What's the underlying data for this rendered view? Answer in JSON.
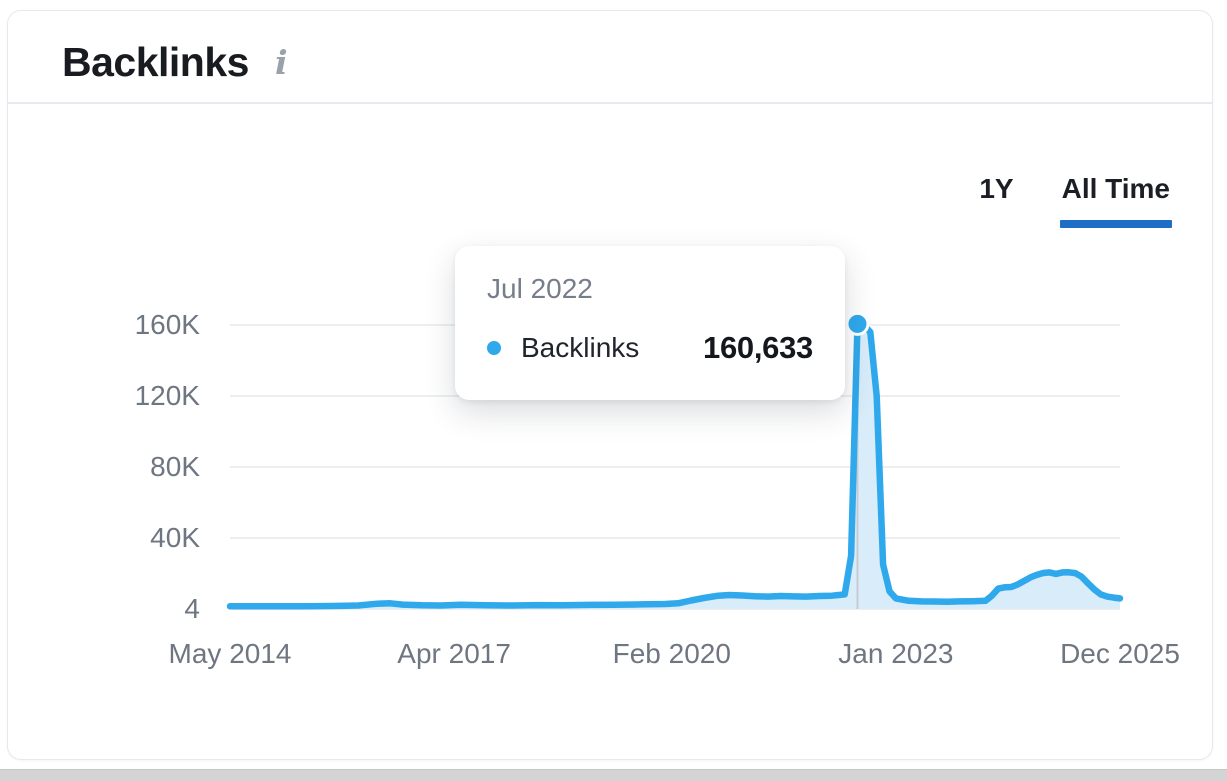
{
  "header": {
    "title": "Backlinks",
    "info_icon_glyph": "i"
  },
  "range_selector": {
    "options": [
      {
        "label": "1Y",
        "active": false
      },
      {
        "label": "All Time",
        "active": true
      }
    ]
  },
  "tooltip": {
    "date": "Jul 2022",
    "series_label": "Backlinks",
    "value": "160,633"
  },
  "chart_data": {
    "type": "area",
    "title": "Backlinks",
    "xlabel": "",
    "ylabel": "",
    "x_unit": "month index, 0 = May 2014, 139 = Dec 2025",
    "ylim": [
      0,
      170000
    ],
    "grid": true,
    "legend": "none",
    "x_ticks": [
      {
        "month": 0,
        "label": "May 2014"
      },
      {
        "month": 35,
        "label": "Apr 2017"
      },
      {
        "month": 69,
        "label": "Feb 2020"
      },
      {
        "month": 104,
        "label": "Jan 2023"
      },
      {
        "month": 139,
        "label": "Dec 2025"
      }
    ],
    "y_ticks": [
      {
        "value": 160000,
        "label": "160K"
      },
      {
        "value": 120000,
        "label": "120K"
      },
      {
        "value": 80000,
        "label": "80K"
      },
      {
        "value": 40000,
        "label": "40K"
      },
      {
        "value": 4,
        "label": "4"
      }
    ],
    "hover_point": {
      "month": 98,
      "date": "Jul 2022",
      "value": 160633
    },
    "series": [
      {
        "name": "Backlinks",
        "color": "#2FA9EC",
        "fill_color": "#D9ECFA",
        "points": [
          [
            0,
            1500
          ],
          [
            4,
            1500
          ],
          [
            8,
            1600
          ],
          [
            12,
            1500
          ],
          [
            16,
            1700
          ],
          [
            20,
            2000
          ],
          [
            23,
            3000
          ],
          [
            25,
            3200
          ],
          [
            27,
            2500
          ],
          [
            30,
            2100
          ],
          [
            33,
            2000
          ],
          [
            36,
            2400
          ],
          [
            40,
            2100
          ],
          [
            44,
            2000
          ],
          [
            48,
            2200
          ],
          [
            52,
            2100
          ],
          [
            56,
            2300
          ],
          [
            60,
            2400
          ],
          [
            64,
            2600
          ],
          [
            68,
            2800
          ],
          [
            70,
            3200
          ],
          [
            72,
            4800
          ],
          [
            74,
            6200
          ],
          [
            76,
            7400
          ],
          [
            78,
            7900
          ],
          [
            80,
            7600
          ],
          [
            82,
            7200
          ],
          [
            84,
            7000
          ],
          [
            86,
            7300
          ],
          [
            88,
            7100
          ],
          [
            90,
            7000
          ],
          [
            92,
            7300
          ],
          [
            94,
            7500
          ],
          [
            96,
            8200
          ],
          [
            97,
            30000
          ],
          [
            98,
            160633
          ],
          [
            99,
            160000
          ],
          [
            100,
            156000
          ],
          [
            101,
            120000
          ],
          [
            102,
            25000
          ],
          [
            103,
            10000
          ],
          [
            104,
            6000
          ],
          [
            106,
            4600
          ],
          [
            108,
            4300
          ],
          [
            110,
            4200
          ],
          [
            112,
            4100
          ],
          [
            114,
            4300
          ],
          [
            116,
            4400
          ],
          [
            118,
            4600
          ],
          [
            119,
            7500
          ],
          [
            120,
            11500
          ],
          [
            121,
            12200
          ],
          [
            122,
            12400
          ],
          [
            123,
            13800
          ],
          [
            124,
            15800
          ],
          [
            125,
            17800
          ],
          [
            126,
            19200
          ],
          [
            127,
            20300
          ],
          [
            128,
            20600
          ],
          [
            129,
            19800
          ],
          [
            130,
            20600
          ],
          [
            131,
            20700
          ],
          [
            132,
            20200
          ],
          [
            133,
            18200
          ],
          [
            134,
            14500
          ],
          [
            135,
            11000
          ],
          [
            136,
            8200
          ],
          [
            137,
            7000
          ],
          [
            138,
            6400
          ],
          [
            139,
            6000
          ]
        ]
      }
    ]
  },
  "colors": {
    "line_blue": "#2FA9EC",
    "area_fill": "#D9ECFA",
    "gridline": "#E7E9EC",
    "axis_text": "#6E7681",
    "active_underline": "#1E6EC6",
    "title_text": "#181B20",
    "crosshair": "#C7CBD0",
    "tooltip_date_text": "#767E8A",
    "scrollbar": "#D4D4D4"
  }
}
